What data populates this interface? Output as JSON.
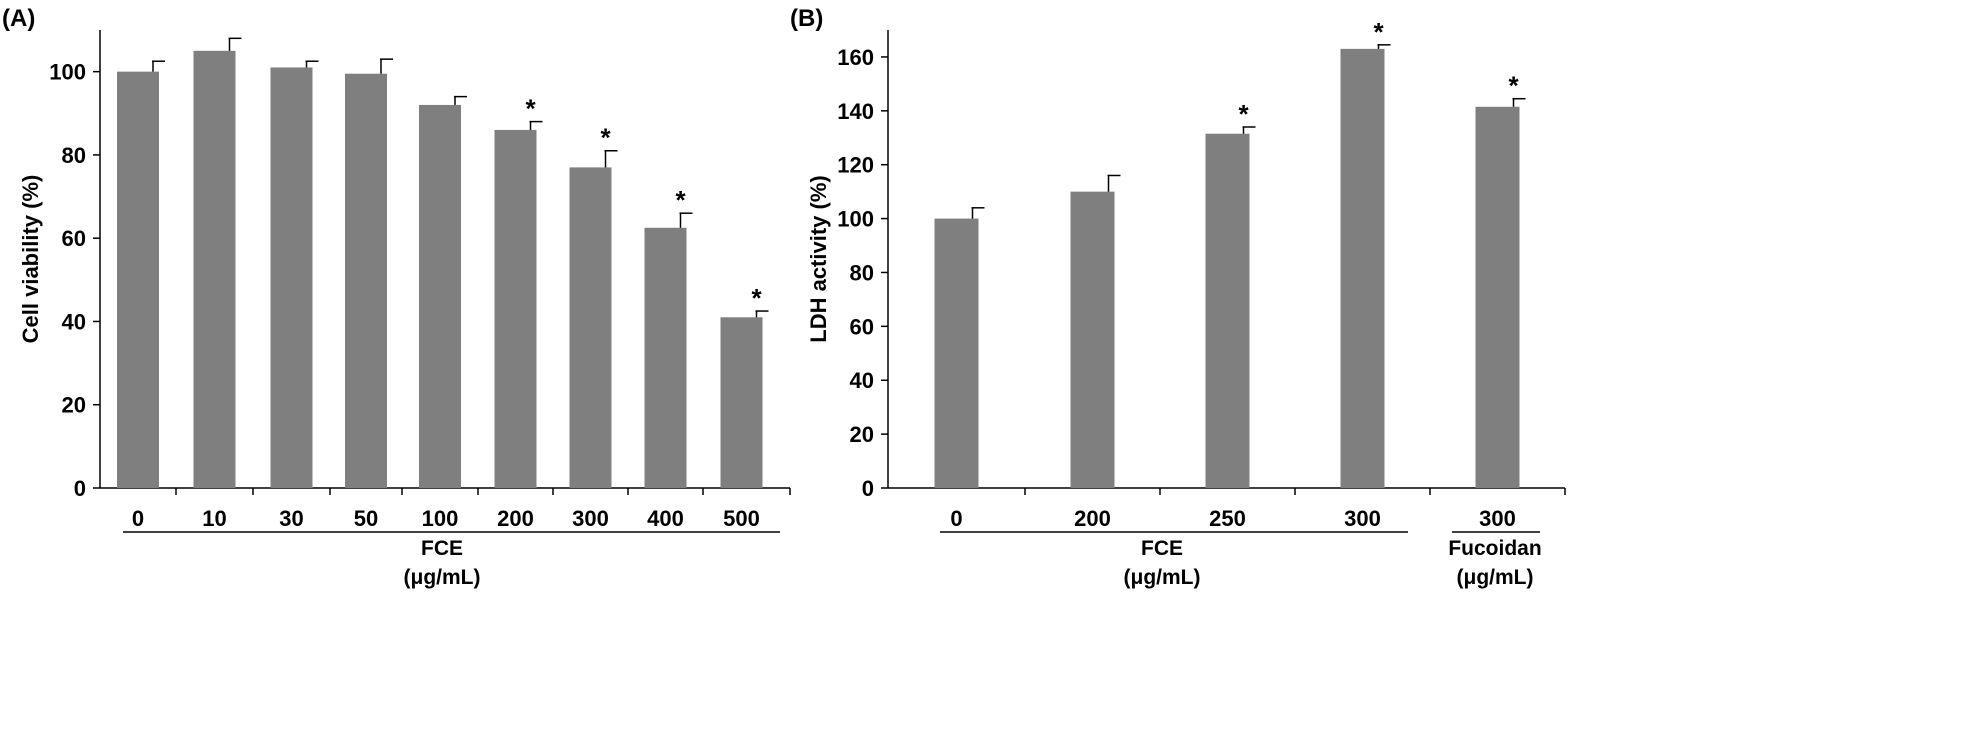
{
  "chart_data": [
    {
      "type": "bar",
      "panel_label": "(A)",
      "ylabel": "Cell viability (%)",
      "ylim": [
        0,
        110
      ],
      "yticks": [
        0,
        20,
        40,
        60,
        80,
        100
      ],
      "categories": [
        "0",
        "10",
        "30",
        "50",
        "100",
        "200",
        "300",
        "400",
        "500"
      ],
      "values": [
        100,
        105,
        101,
        99.5,
        92,
        86,
        77,
        62.5,
        41
      ],
      "errors": [
        2.5,
        3,
        1.5,
        3.5,
        2,
        2,
        4,
        3.5,
        1.5
      ],
      "significant": [
        false,
        false,
        false,
        false,
        false,
        true,
        true,
        true,
        true
      ],
      "significance_marker": "*",
      "bar_color": "#7f7f7f",
      "groups": [
        {
          "label_line1": "FCE",
          "label_line2": "(μg/mL)",
          "from": 0,
          "to": 8
        }
      ]
    },
    {
      "type": "bar",
      "panel_label": "(B)",
      "ylabel": "LDH activity (%)",
      "ylim": [
        0,
        170
      ],
      "yticks": [
        0,
        20,
        40,
        60,
        80,
        100,
        120,
        140,
        160
      ],
      "categories": [
        "0",
        "200",
        "250",
        "300",
        "300"
      ],
      "values": [
        100,
        110,
        131.5,
        163,
        141.5
      ],
      "errors": [
        4,
        6,
        2.5,
        1.5,
        3
      ],
      "significant": [
        false,
        false,
        true,
        true,
        true
      ],
      "significance_marker": "*",
      "bar_color": "#7f7f7f",
      "groups": [
        {
          "label_line1": "FCE",
          "label_line2": "(μg/mL)",
          "from": 0,
          "to": 3
        },
        {
          "label_line1": "Fucoidan",
          "label_line2": "(μg/mL)",
          "from": 4,
          "to": 4
        }
      ]
    }
  ]
}
